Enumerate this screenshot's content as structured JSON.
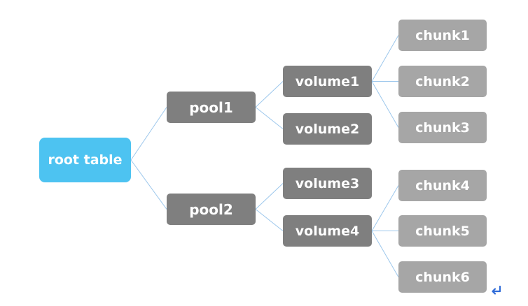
{
  "colors": {
    "root": "#4DC3F1",
    "pool": "#7F7F7F",
    "volume": "#7F7F7F",
    "chunk": "#A6A6A6",
    "edge": "#9CC7EC",
    "return_mark": "#2F6BD8"
  },
  "nodes": {
    "root": "root table",
    "pool1": "pool1",
    "pool2": "pool2",
    "volume1": "volume1",
    "volume2": "volume2",
    "volume3": "volume3",
    "volume4": "volume4",
    "chunk1": "chunk1",
    "chunk2": "chunk2",
    "chunk3": "chunk3",
    "chunk4": "chunk4",
    "chunk5": "chunk5",
    "chunk6": "chunk6"
  },
  "edges": [
    [
      "root",
      "pool1"
    ],
    [
      "root",
      "pool2"
    ],
    [
      "pool1",
      "volume1"
    ],
    [
      "pool1",
      "volume2"
    ],
    [
      "pool2",
      "volume3"
    ],
    [
      "pool2",
      "volume4"
    ],
    [
      "volume1",
      "chunk1"
    ],
    [
      "volume1",
      "chunk2"
    ],
    [
      "volume1",
      "chunk3"
    ],
    [
      "volume4",
      "chunk4"
    ],
    [
      "volume4",
      "chunk5"
    ],
    [
      "volume4",
      "chunk6"
    ]
  ],
  "icons": {
    "return_mark": "paragraph-return-icon"
  }
}
